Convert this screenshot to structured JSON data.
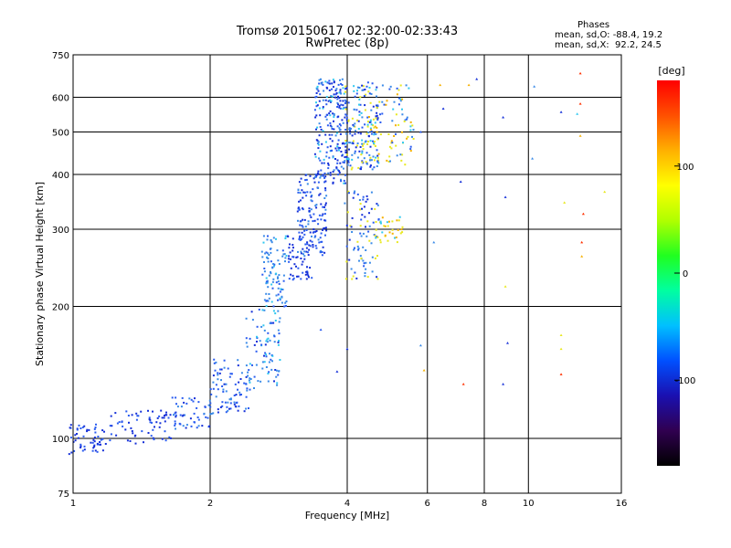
{
  "chart_data": {
    "type": "scatter",
    "title": "Tromsø 20150617 02:32:00-02:33:43",
    "subtitle": "RwPretec (8p)",
    "xlabel": "Frequency [MHz]",
    "ylabel": "Stationary phase Virtual Height [km]",
    "x_scale": "log",
    "y_scale": "log",
    "xlim": [
      1,
      16
    ],
    "ylim": [
      75,
      750
    ],
    "x_ticks": [
      1,
      2,
      4,
      6,
      8,
      10,
      16
    ],
    "y_ticks": [
      75,
      100,
      200,
      300,
      400,
      500,
      600,
      750
    ],
    "grid": true,
    "phase_stats": {
      "title": "Phases",
      "o_line": "mean, sd,O: -88.4, 19.2",
      "x_line": "mean, sd,X:  92.2, 24.5"
    },
    "colorbar": {
      "label": "[deg]",
      "range": [
        -180,
        180
      ],
      "ticks": [
        100,
        0,
        -100
      ],
      "colors": [
        "#000000",
        "#300050",
        "#1a10b0",
        "#0050ff",
        "#00c0ff",
        "#00ffa0",
        "#20ff20",
        "#b0ff00",
        "#ffff00",
        "#ffb000",
        "#ff5000",
        "#ff0000"
      ]
    },
    "series_colors": [
      "#1530d8",
      "#2a5cf0",
      "#3b8be8",
      "#30c8f0",
      "#e8e820",
      "#f5b000",
      "#ff3000"
    ],
    "clusters": [
      {
        "f": [
          0.98,
          1.18
        ],
        "h": [
          92,
          108
        ],
        "n": 55,
        "c": [
          0,
          0,
          0,
          1,
          1
        ]
      },
      {
        "f": [
          1.18,
          1.65
        ],
        "h": [
          97,
          116
        ],
        "n": 65,
        "c": [
          0,
          0,
          1,
          1
        ]
      },
      {
        "f": [
          1.65,
          2.05
        ],
        "h": [
          105,
          124
        ],
        "n": 55,
        "c": [
          0,
          1,
          1,
          2
        ]
      },
      {
        "f": [
          2.0,
          2.45
        ],
        "h": [
          114,
          152
        ],
        "n": 85,
        "c": [
          0,
          1,
          1,
          2
        ]
      },
      {
        "f": [
          2.4,
          2.85
        ],
        "h": [
          130,
          200
        ],
        "n": 85,
        "c": [
          0,
          1,
          2,
          2,
          3
        ]
      },
      {
        "f": [
          2.6,
          2.95
        ],
        "h": [
          200,
          290
        ],
        "n": 95,
        "c": [
          1,
          2,
          2,
          3
        ]
      },
      {
        "f": [
          2.95,
          3.35
        ],
        "h": [
          230,
          290
        ],
        "n": 60,
        "c": [
          0,
          0,
          1
        ]
      },
      {
        "f": [
          3.1,
          3.6
        ],
        "h": [
          260,
          400
        ],
        "n": 135,
        "c": [
          0,
          0,
          1,
          1,
          2
        ]
      },
      {
        "f": [
          3.4,
          4.0
        ],
        "h": [
          380,
          660
        ],
        "n": 230,
        "c": [
          0,
          0,
          0,
          1,
          1,
          2,
          3
        ]
      },
      {
        "f": [
          3.95,
          4.7
        ],
        "h": [
          410,
          650
        ],
        "n": 170,
        "c": [
          0,
          1,
          2,
          3,
          4
        ]
      },
      {
        "f": [
          4.4,
          5.6
        ],
        "h": [
          420,
          640
        ],
        "n": 95,
        "c": [
          1,
          2,
          3,
          4,
          4,
          5
        ]
      },
      {
        "f": [
          3.95,
          4.7
        ],
        "h": [
          230,
          370
        ],
        "n": 85,
        "c": [
          0,
          1,
          2,
          4
        ]
      },
      {
        "f": [
          4.6,
          5.3
        ],
        "h": [
          280,
          320
        ],
        "n": 35,
        "c": [
          3,
          4,
          4,
          5
        ]
      }
    ],
    "sparse_points": [
      {
        "x": 6.4,
        "y": 640,
        "c": 5
      },
      {
        "x": 6.5,
        "y": 565,
        "c": 0
      },
      {
        "x": 7.4,
        "y": 640,
        "c": 5
      },
      {
        "x": 7.7,
        "y": 660,
        "c": 0
      },
      {
        "x": 8.8,
        "y": 540,
        "c": 0
      },
      {
        "x": 10.3,
        "y": 635,
        "c": 2
      },
      {
        "x": 11.8,
        "y": 555,
        "c": 0
      },
      {
        "x": 13.0,
        "y": 680,
        "c": 6
      },
      {
        "x": 13.0,
        "y": 580,
        "c": 6
      },
      {
        "x": 12.8,
        "y": 550,
        "c": 3
      },
      {
        "x": 13.0,
        "y": 490,
        "c": 5
      },
      {
        "x": 10.2,
        "y": 435,
        "c": 2
      },
      {
        "x": 7.1,
        "y": 385,
        "c": 0
      },
      {
        "x": 8.9,
        "y": 355,
        "c": 0
      },
      {
        "x": 12.0,
        "y": 345,
        "c": 4
      },
      {
        "x": 13.2,
        "y": 325,
        "c": 6
      },
      {
        "x": 14.7,
        "y": 365,
        "c": 4
      },
      {
        "x": 6.2,
        "y": 280,
        "c": 2
      },
      {
        "x": 13.1,
        "y": 280,
        "c": 6
      },
      {
        "x": 13.1,
        "y": 260,
        "c": 5
      },
      {
        "x": 8.9,
        "y": 222,
        "c": 4
      },
      {
        "x": 9.0,
        "y": 165,
        "c": 0
      },
      {
        "x": 5.8,
        "y": 163,
        "c": 2
      },
      {
        "x": 5.9,
        "y": 143,
        "c": 5
      },
      {
        "x": 7.2,
        "y": 133,
        "c": 6
      },
      {
        "x": 8.8,
        "y": 133,
        "c": 0
      },
      {
        "x": 11.8,
        "y": 172,
        "c": 4
      },
      {
        "x": 11.8,
        "y": 160,
        "c": 4
      },
      {
        "x": 11.8,
        "y": 140,
        "c": 6
      },
      {
        "x": 4.0,
        "y": 160,
        "c": 0
      },
      {
        "x": 3.8,
        "y": 142,
        "c": 0
      },
      {
        "x": 3.5,
        "y": 177,
        "c": 1
      },
      {
        "x": 5.8,
        "y": 500,
        "c": 1
      }
    ]
  }
}
